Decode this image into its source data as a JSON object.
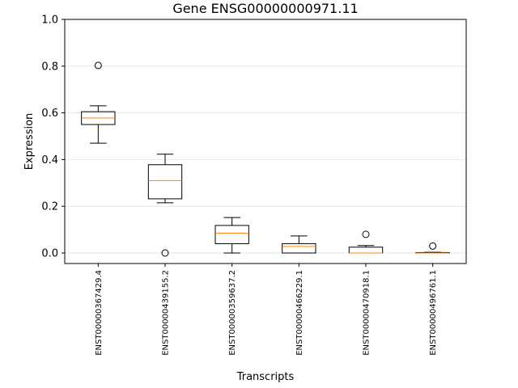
{
  "chart_data": {
    "type": "box",
    "title": "Gene ENSG00000000971.11",
    "xlabel": "Transcripts",
    "ylabel": "Expression",
    "ylim": [
      -0.045,
      1.0
    ],
    "yticks": [
      "0.0",
      "0.2",
      "0.4",
      "0.6",
      "0.8",
      "1.0"
    ],
    "grid": "horizontal",
    "categories": [
      "ENST00000367429.4",
      "ENST00000439155.2",
      "ENST00000359637.2",
      "ENST00000466229.1",
      "ENST00000470918.1",
      "ENST00000496761.1"
    ],
    "boxes": [
      {
        "whisker_low": 0.47,
        "q1": 0.55,
        "median": 0.578,
        "q3": 0.605,
        "whisker_high": 0.63,
        "outliers": [
          0.803
        ]
      },
      {
        "whisker_low": 0.215,
        "q1": 0.232,
        "median": 0.31,
        "q3": 0.378,
        "whisker_high": 0.423,
        "outliers": [
          0.0
        ]
      },
      {
        "whisker_low": 0.0,
        "q1": 0.04,
        "median": 0.085,
        "q3": 0.118,
        "whisker_high": 0.152,
        "outliers": []
      },
      {
        "whisker_low": 0.0,
        "q1": 0.0,
        "median": 0.028,
        "q3": 0.04,
        "whisker_high": 0.073,
        "outliers": []
      },
      {
        "whisker_low": 0.0,
        "q1": 0.0,
        "median": 0.0,
        "q3": 0.025,
        "whisker_high": 0.032,
        "outliers": [
          0.08
        ]
      },
      {
        "whisker_low": 0.0,
        "q1": 0.0,
        "median": 0.0,
        "q3": 0.002,
        "whisker_high": 0.003,
        "outliers": [
          0.03
        ]
      }
    ],
    "colors": {
      "box": "#000000",
      "median": "#ff7f0e",
      "grid": "#e6e6e6",
      "outlier": "#000000"
    }
  }
}
